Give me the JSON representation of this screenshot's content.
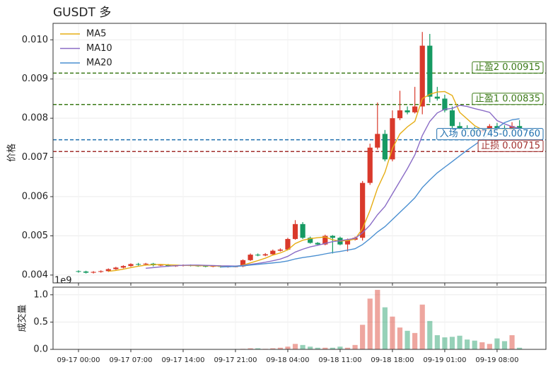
{
  "chart_data": {
    "type": "candlestick",
    "title": "GUSDT  多",
    "ylabel": "价格",
    "categories": [
      "09-17 00:00",
      null,
      null,
      null,
      null,
      null,
      null,
      "09-17 07:00",
      null,
      null,
      null,
      null,
      null,
      null,
      "09-17 14:00",
      null,
      null,
      null,
      null,
      null,
      null,
      "09-17 21:00",
      null,
      null,
      null,
      null,
      null,
      null,
      "09-18 04:00",
      null,
      null,
      null,
      null,
      null,
      null,
      "09-18 11:00",
      null,
      null,
      null,
      null,
      null,
      null,
      "09-18 18:00",
      null,
      null,
      null,
      null,
      null,
      null,
      "09-19 01:00",
      null,
      null,
      null,
      null,
      null,
      null,
      "09-19 08:00",
      null,
      null,
      null
    ],
    "open": [
      0.0041,
      0.00409,
      0.00406,
      0.00408,
      0.0041,
      0.00415,
      0.00419,
      0.00423,
      0.00428,
      0.00427,
      0.00429,
      0.00425,
      0.00426,
      0.00423,
      0.00424,
      0.00425,
      0.00424,
      0.00423,
      0.00422,
      0.00423,
      0.00421,
      0.00422,
      0.00422,
      0.00438,
      0.00452,
      0.0045,
      0.00453,
      0.00462,
      0.00465,
      0.00492,
      0.0053,
      0.00495,
      0.00482,
      0.00478,
      0.005,
      0.00495,
      0.00478,
      0.0049,
      0.00495,
      0.00635,
      0.00725,
      0.0076,
      0.00695,
      0.008,
      0.0082,
      0.00815,
      0.0083,
      0.00985,
      0.00855,
      0.0085,
      0.0082,
      0.0078,
      0.00775,
      0.0077,
      0.00765,
      0.0077,
      0.0078,
      0.00775,
      0.0077,
      0.0078
    ],
    "high": [
      0.00412,
      0.00411,
      0.0041,
      0.00412,
      0.00417,
      0.00421,
      0.00425,
      0.0043,
      0.00431,
      0.00431,
      0.00431,
      0.00428,
      0.00428,
      0.00426,
      0.00427,
      0.00427,
      0.00426,
      0.00425,
      0.00425,
      0.00425,
      0.00424,
      0.00424,
      0.0044,
      0.00455,
      0.00455,
      0.00456,
      0.00465,
      0.00468,
      0.00495,
      0.0054,
      0.00535,
      0.00498,
      0.00484,
      0.00503,
      0.00502,
      0.00498,
      0.00493,
      0.00498,
      0.0064,
      0.00735,
      0.0084,
      0.0077,
      0.0082,
      0.0087,
      0.0083,
      0.0088,
      0.0102,
      0.01015,
      0.0088,
      0.0086,
      0.0083,
      0.0079,
      0.00782,
      0.00778,
      0.00775,
      0.00785,
      0.00788,
      0.00782,
      0.0079,
      0.00795
    ],
    "low": [
      0.00406,
      0.00404,
      0.00404,
      0.00406,
      0.00408,
      0.00413,
      0.00417,
      0.00421,
      0.00424,
      0.00425,
      0.00422,
      0.00423,
      0.00421,
      0.00421,
      0.00422,
      0.00422,
      0.00421,
      0.0042,
      0.0042,
      0.00419,
      0.00419,
      0.0042,
      0.0042,
      0.00436,
      0.00448,
      0.00448,
      0.00451,
      0.0046,
      0.00463,
      0.0049,
      0.00492,
      0.0048,
      0.00476,
      0.00476,
      0.00455,
      0.00476,
      0.0046,
      0.00488,
      0.00488,
      0.0063,
      0.0072,
      0.0069,
      0.0069,
      0.00795,
      0.0081,
      0.00812,
      0.0081,
      0.0084,
      0.00845,
      0.00815,
      0.00775,
      0.0077,
      0.00765,
      0.0076,
      0.00762,
      0.00768,
      0.00772,
      0.00766,
      0.00768,
      0.00772
    ],
    "close": [
      0.00409,
      0.00406,
      0.00408,
      0.0041,
      0.00415,
      0.00419,
      0.00423,
      0.00428,
      0.00427,
      0.00429,
      0.00425,
      0.00426,
      0.00423,
      0.00424,
      0.00425,
      0.00424,
      0.00423,
      0.00422,
      0.00423,
      0.00421,
      0.00422,
      0.00422,
      0.00438,
      0.00452,
      0.0045,
      0.00453,
      0.00462,
      0.00465,
      0.00492,
      0.0053,
      0.00495,
      0.00482,
      0.00478,
      0.005,
      0.00495,
      0.00478,
      0.0049,
      0.00495,
      0.00635,
      0.00725,
      0.0076,
      0.00695,
      0.008,
      0.0082,
      0.00815,
      0.0083,
      0.00985,
      0.00855,
      0.0085,
      0.0082,
      0.0078,
      0.00775,
      0.0077,
      0.00765,
      0.0077,
      0.0078,
      0.00775,
      0.0077,
      0.0078,
      0.00775
    ],
    "up_color": "#d9392b",
    "down_color": "#169a62",
    "series": [
      {
        "name": "MA5",
        "color": "#e6ad13",
        "values": [
          null,
          null,
          null,
          null,
          0.004096,
          0.004116,
          0.00415,
          0.00419,
          0.004224,
          0.004252,
          0.004264,
          0.00427,
          0.00426,
          0.004254,
          0.004246,
          0.004244,
          0.004238,
          0.004236,
          0.004234,
          0.004226,
          0.004222,
          0.00422,
          0.004252,
          0.00431,
          0.004368,
          0.00443,
          0.00451,
          0.004564,
          0.004644,
          0.004804,
          0.004888,
          0.004928,
          0.004954,
          0.00497,
          0.0049,
          0.004866,
          0.004882,
          0.004916,
          0.005186,
          0.005646,
          0.00621,
          0.00662,
          0.00723,
          0.0076,
          0.00778,
          0.00792,
          0.0085,
          0.00861,
          0.00867,
          0.00868,
          0.00858,
          0.00815,
          0.00798,
          0.00781,
          0.00771,
          0.00771,
          0.00771,
          0.00771,
          0.00774,
          0.00775
        ]
      },
      {
        "name": "MA10",
        "color": "#8a6cc6",
        "values": [
          null,
          null,
          null,
          null,
          null,
          null,
          null,
          null,
          null,
          0.004174,
          0.00419,
          0.00421,
          0.004225,
          0.004239,
          0.004249,
          0.004254,
          0.004254,
          0.004248,
          0.004244,
          0.004236,
          0.004233,
          0.004229,
          0.004244,
          0.004272,
          0.004297,
          0.004326,
          0.004365,
          0.004408,
          0.004477,
          0.004586,
          0.004659,
          0.004719,
          0.004759,
          0.004807,
          0.004852,
          0.004877,
          0.004905,
          0.004935,
          0.005078,
          0.005273,
          0.005538,
          0.005751,
          0.006073,
          0.006393,
          0.006713,
          0.007065,
          0.00756,
          0.00792,
          0.008135,
          0.00823,
          0.00825,
          0.00833,
          0.0083,
          0.008245,
          0.0082,
          0.00815,
          0.00794,
          0.007855,
          0.007785,
          0.00774
        ]
      },
      {
        "name": "MA20",
        "color": "#4a8fd1",
        "values": [
          null,
          null,
          null,
          null,
          null,
          null,
          null,
          null,
          null,
          null,
          null,
          null,
          null,
          null,
          null,
          null,
          null,
          null,
          null,
          0.004205,
          0.0042115,
          0.0042195,
          0.0042345,
          0.0042555,
          0.004273,
          0.00429,
          0.0043095,
          0.004328,
          0.0043605,
          0.004411,
          0.004446,
          0.004474,
          0.0045015,
          0.0045395,
          0.0045745,
          0.0046015,
          0.004635,
          0.0046715,
          0.0047775,
          0.0049295,
          0.0050985,
          0.005235,
          0.005416,
          0.0056,
          0.0057825,
          0.005971,
          0.0062325,
          0.0064275,
          0.0066065,
          0.0067515,
          0.006894,
          0.0070405,
          0.0071865,
          0.007319,
          0.0074565,
          0.0076075,
          0.00775,
          0.0078875,
          0.00796,
          0.007985
        ]
      }
    ],
    "levels": [
      {
        "label": "止盈2 0.00915",
        "value": 0.00915,
        "color": "#3b7a17"
      },
      {
        "label": "止盈1 0.00835",
        "value": 0.00835,
        "color": "#3b7a17"
      },
      {
        "label": "入场 0.00745-0.00760",
        "value": 0.00745,
        "color": "#1f6fae"
      },
      {
        "label": "止损 0.00715",
        "value": 0.00715,
        "color": "#a2302e"
      }
    ],
    "ylim": [
      0.0038,
      0.01042
    ],
    "yticks": [
      0.004,
      0.005,
      0.006,
      0.007,
      0.008,
      0.009,
      {
        "value": 0.01,
        "label": "0.010"
      }
    ],
    "grid": true,
    "legend": "upper left",
    "volume": {
      "ylabel": "成交量",
      "offset_label": "1e9",
      "values": [
        0.003,
        0.003,
        0.002,
        0.003,
        0.003,
        0.004,
        0.003,
        0.004,
        0.003,
        0.003,
        0.003,
        0.003,
        0.002,
        0.003,
        0.002,
        0.002,
        0.003,
        0.002,
        0.002,
        0.002,
        0.003,
        0.003,
        0.01,
        0.02,
        0.02,
        0.01,
        0.02,
        0.03,
        0.05,
        0.1,
        0.08,
        0.05,
        0.03,
        0.03,
        0.03,
        0.05,
        0.03,
        0.08,
        0.45,
        0.93,
        1.09,
        0.77,
        0.6,
        0.4,
        0.34,
        0.3,
        0.82,
        0.52,
        0.26,
        0.22,
        0.23,
        0.25,
        0.18,
        0.16,
        0.13,
        0.1,
        0.2,
        0.15,
        0.26,
        0.03
      ],
      "ylim": [
        0,
        1.14
      ],
      "yticks": [
        {
          "value": 0,
          "label": "0.0"
        },
        {
          "value": 0.5,
          "label": "0.5"
        },
        {
          "value": 1,
          "label": "1.0"
        }
      ]
    }
  }
}
